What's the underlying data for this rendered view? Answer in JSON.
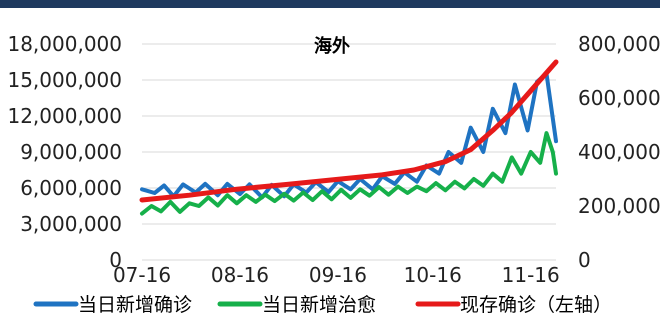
{
  "chart_data": {
    "type": "line",
    "title": "海外",
    "xlabel": "",
    "ylabel_left": "",
    "ylabel_right": "",
    "x_tick_labels": [
      "07-16",
      "08-16",
      "09-16",
      "10-16",
      "11-16"
    ],
    "x_tick_dates": [
      "2020-07-16",
      "2020-08-16",
      "2020-09-16",
      "2020-10-16",
      "2020-11-16"
    ],
    "x_range": [
      "2020-07-16",
      "2020-11-24"
    ],
    "left_axis": {
      "ylim": [
        0,
        18000000
      ],
      "ticks": [
        0,
        3000000,
        6000000,
        9000000,
        12000000,
        15000000,
        18000000
      ],
      "tick_labels": [
        "0",
        "3,000,000",
        "6,000,000",
        "9,000,000",
        "12,000,000",
        "15,000,000",
        "18,000,000"
      ]
    },
    "right_axis": {
      "ylim": [
        0,
        800000
      ],
      "ticks": [
        0,
        200000,
        400000,
        600000,
        800000
      ],
      "tick_labels": [
        "0",
        "200,000",
        "400,000",
        "600,000",
        "800,000"
      ]
    },
    "grid": true,
    "legend_position": "bottom",
    "series": [
      {
        "name": "当日新增确诊",
        "axis": "right",
        "color": "#1f73c2",
        "points": [
          [
            "2020-07-16",
            262000
          ],
          [
            "2020-07-20",
            248000
          ],
          [
            "2020-07-23",
            276000
          ],
          [
            "2020-07-26",
            236000
          ],
          [
            "2020-07-29",
            280000
          ],
          [
            "2020-08-02",
            250000
          ],
          [
            "2020-08-05",
            282000
          ],
          [
            "2020-08-09",
            240000
          ],
          [
            "2020-08-12",
            282000
          ],
          [
            "2020-08-16",
            244000
          ],
          [
            "2020-08-19",
            280000
          ],
          [
            "2020-08-23",
            232000
          ],
          [
            "2020-08-26",
            278000
          ],
          [
            "2020-08-30",
            236000
          ],
          [
            "2020-09-02",
            280000
          ],
          [
            "2020-09-06",
            250000
          ],
          [
            "2020-09-09",
            288000
          ],
          [
            "2020-09-13",
            252000
          ],
          [
            "2020-09-16",
            292000
          ],
          [
            "2020-09-20",
            262000
          ],
          [
            "2020-09-23",
            300000
          ],
          [
            "2020-09-27",
            262000
          ],
          [
            "2020-09-30",
            310000
          ],
          [
            "2020-10-04",
            282000
          ],
          [
            "2020-10-07",
            325000
          ],
          [
            "2020-10-11",
            290000
          ],
          [
            "2020-10-14",
            350000
          ],
          [
            "2020-10-18",
            320000
          ],
          [
            "2020-10-21",
            400000
          ],
          [
            "2020-10-25",
            360000
          ],
          [
            "2020-10-28",
            490000
          ],
          [
            "2020-11-01",
            400000
          ],
          [
            "2020-11-04",
            560000
          ],
          [
            "2020-11-08",
            470000
          ],
          [
            "2020-11-11",
            650000
          ],
          [
            "2020-11-15",
            480000
          ],
          [
            "2020-11-18",
            660000
          ],
          [
            "2020-11-21",
            690000
          ],
          [
            "2020-11-24",
            440000
          ]
        ]
      },
      {
        "name": "当日新增治愈",
        "axis": "right",
        "color": "#16b04a",
        "points": [
          [
            "2020-07-16",
            172000
          ],
          [
            "2020-07-19",
            200000
          ],
          [
            "2020-07-22",
            180000
          ],
          [
            "2020-07-25",
            215000
          ],
          [
            "2020-07-28",
            178000
          ],
          [
            "2020-07-31",
            210000
          ],
          [
            "2020-08-03",
            200000
          ],
          [
            "2020-08-06",
            232000
          ],
          [
            "2020-08-09",
            202000
          ],
          [
            "2020-08-12",
            240000
          ],
          [
            "2020-08-15",
            210000
          ],
          [
            "2020-08-18",
            240000
          ],
          [
            "2020-08-21",
            215000
          ],
          [
            "2020-08-24",
            242000
          ],
          [
            "2020-08-27",
            218000
          ],
          [
            "2020-08-30",
            245000
          ],
          [
            "2020-09-02",
            220000
          ],
          [
            "2020-09-05",
            250000
          ],
          [
            "2020-09-08",
            222000
          ],
          [
            "2020-09-11",
            255000
          ],
          [
            "2020-09-14",
            225000
          ],
          [
            "2020-09-17",
            260000
          ],
          [
            "2020-09-20",
            230000
          ],
          [
            "2020-09-23",
            262000
          ],
          [
            "2020-09-26",
            238000
          ],
          [
            "2020-09-29",
            270000
          ],
          [
            "2020-10-02",
            242000
          ],
          [
            "2020-10-05",
            272000
          ],
          [
            "2020-10-08",
            248000
          ],
          [
            "2020-10-11",
            272000
          ],
          [
            "2020-10-14",
            255000
          ],
          [
            "2020-10-17",
            285000
          ],
          [
            "2020-10-20",
            258000
          ],
          [
            "2020-10-23",
            290000
          ],
          [
            "2020-10-26",
            265000
          ],
          [
            "2020-10-29",
            300000
          ],
          [
            "2020-11-01",
            275000
          ],
          [
            "2020-11-04",
            320000
          ],
          [
            "2020-11-07",
            290000
          ],
          [
            "2020-11-10",
            380000
          ],
          [
            "2020-11-13",
            320000
          ],
          [
            "2020-11-16",
            400000
          ],
          [
            "2020-11-19",
            360000
          ],
          [
            "2020-11-21",
            470000
          ],
          [
            "2020-11-23",
            400000
          ],
          [
            "2020-11-24",
            320000
          ]
        ]
      },
      {
        "name": "现存确诊（左轴）",
        "axis": "left",
        "color": "#e61a1a",
        "points": [
          [
            "2020-07-16",
            5000000
          ],
          [
            "2020-07-31",
            5400000
          ],
          [
            "2020-08-15",
            5900000
          ],
          [
            "2020-08-31",
            6300000
          ],
          [
            "2020-09-15",
            6700000
          ],
          [
            "2020-09-30",
            7100000
          ],
          [
            "2020-10-10",
            7500000
          ],
          [
            "2020-10-20",
            8200000
          ],
          [
            "2020-10-28",
            9200000
          ],
          [
            "2020-11-04",
            10800000
          ],
          [
            "2020-11-10",
            12300000
          ],
          [
            "2020-11-16",
            14100000
          ],
          [
            "2020-11-21",
            15600000
          ],
          [
            "2020-11-24",
            16500000
          ]
        ]
      }
    ]
  }
}
